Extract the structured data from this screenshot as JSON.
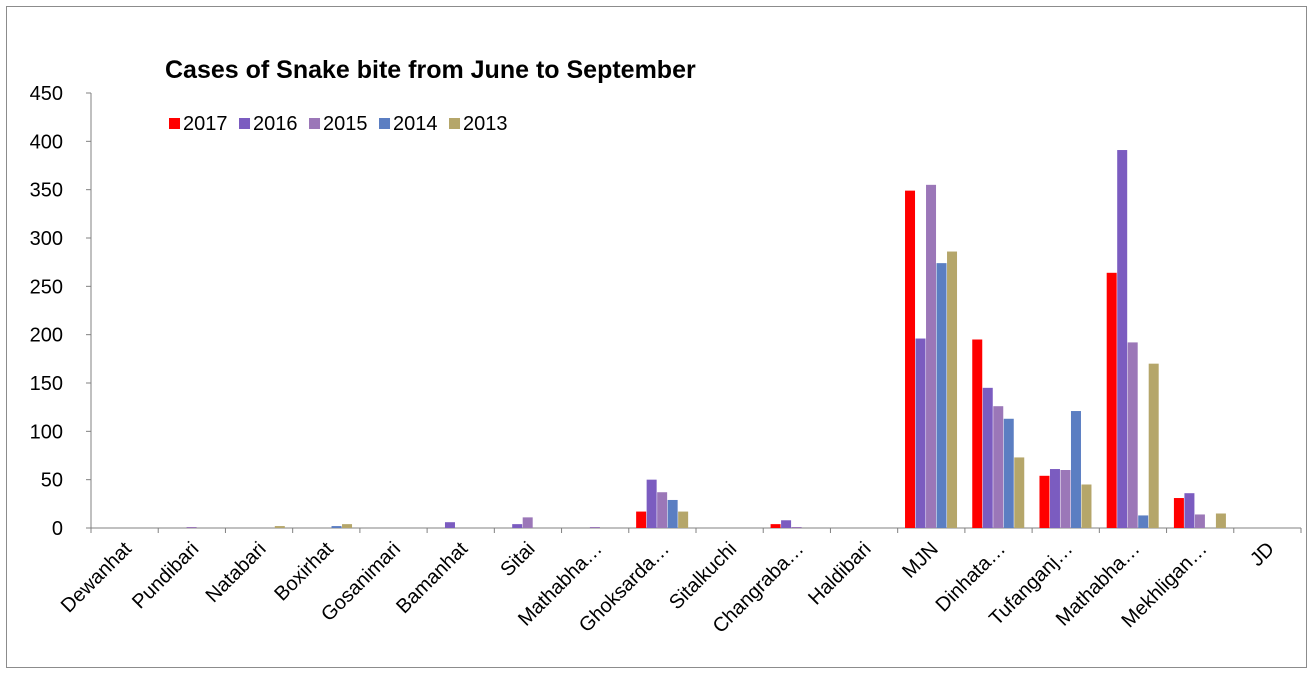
{
  "chart_data": {
    "type": "bar",
    "title": "Cases of Snake bite from June to September",
    "xlabel": "",
    "ylabel": "",
    "ylim": [
      0,
      450
    ],
    "yticks": [
      0,
      50,
      100,
      150,
      200,
      250,
      300,
      350,
      400,
      450
    ],
    "grid": false,
    "legend_position": "top-left",
    "categories": [
      "Dewanhat",
      "Pundibari",
      "Natabari",
      "Boxirhat",
      "Gosanimari",
      "Bamanhat",
      "Sitai",
      "Mathabha…",
      "Ghoksarda…",
      "Sitalkuchi",
      "Changraba…",
      "Haldibari",
      "MJN",
      "Dinhata…",
      "Tufanganj…",
      "Mathabha…",
      "Mekhligan…",
      "JD"
    ],
    "series": [
      {
        "name": "2017",
        "color": "#ff0000",
        "values": [
          0,
          0,
          0,
          0,
          0,
          0,
          0,
          0,
          17,
          0,
          4,
          0,
          349,
          195,
          54,
          264,
          31,
          0
        ]
      },
      {
        "name": "2016",
        "color": "#7b5cc0",
        "values": [
          0,
          0,
          0,
          0,
          0,
          6,
          4,
          0,
          50,
          0,
          8,
          0,
          196,
          145,
          61,
          391,
          36,
          0
        ]
      },
      {
        "name": "2015",
        "color": "#9b77b8",
        "values": [
          0,
          1,
          0,
          0,
          0,
          0,
          11,
          1,
          37,
          0,
          1,
          0,
          355,
          126,
          60,
          192,
          14,
          0
        ]
      },
      {
        "name": "2014",
        "color": "#5b7ec2",
        "values": [
          0,
          0,
          0,
          2,
          0,
          0,
          0,
          0,
          29,
          0,
          0,
          0,
          274,
          113,
          121,
          13,
          0,
          0
        ]
      },
      {
        "name": "2013",
        "color": "#b5a66a",
        "values": [
          0,
          0,
          2,
          4,
          0,
          0,
          0,
          0,
          17,
          0,
          0,
          0,
          286,
          73,
          45,
          170,
          15,
          0
        ]
      }
    ]
  }
}
